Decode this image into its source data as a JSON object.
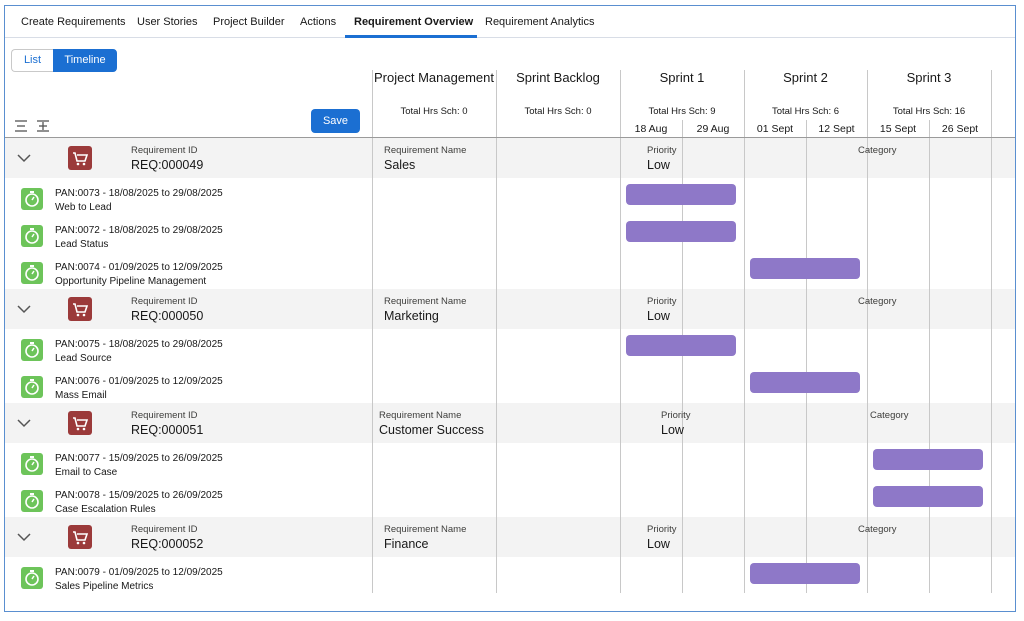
{
  "tabs": [
    {
      "label": "Create Requirements"
    },
    {
      "label": "User Stories"
    },
    {
      "label": "Project Builder"
    },
    {
      "label": "Actions"
    },
    {
      "label": "Requirement Overview",
      "active": true
    },
    {
      "label": "Requirement Analytics"
    }
  ],
  "view_toggle": {
    "list": "List",
    "timeline": "Timeline",
    "selected": "Timeline"
  },
  "save_label": "Save",
  "columns": [
    {
      "title": "Project Management",
      "hrs": "Total Hrs Sch: 0"
    },
    {
      "title": "Sprint Backlog",
      "hrs": "Total Hrs Sch: 0"
    },
    {
      "title": "Sprint 1",
      "hrs": "Total Hrs Sch: 9",
      "dates": [
        "18 Aug",
        "29 Aug"
      ]
    },
    {
      "title": "Sprint 2",
      "hrs": "Total Hrs Sch: 6",
      "dates": [
        "01 Sept",
        "12 Sept"
      ]
    },
    {
      "title": "Sprint 3",
      "hrs": "Total Hrs Sch: 16",
      "dates": [
        "15 Sept",
        "26 Sept"
      ]
    }
  ],
  "field_labels": {
    "req_id": "Requirement ID",
    "req_name": "Requirement Name",
    "priority": "Priority",
    "category": "Category"
  },
  "requirements": [
    {
      "id": "REQ:000049",
      "name": "Sales",
      "priority": "Low",
      "category": "",
      "tasks": [
        {
          "line1": "PAN:0073 - 18/08/2025 to 29/08/2025",
          "line2": "Web to Lead",
          "sprint": "Sprint 1"
        },
        {
          "line1": "PAN:0072 - 18/08/2025 to 29/08/2025",
          "line2": "Lead Status",
          "sprint": "Sprint 1"
        },
        {
          "line1": "PAN:0074 - 01/09/2025 to 12/09/2025",
          "line2": "Opportunity Pipeline Management",
          "sprint": "Sprint 2"
        }
      ]
    },
    {
      "id": "REQ:000050",
      "name": "Marketing",
      "priority": "Low",
      "category": "",
      "tasks": [
        {
          "line1": "PAN:0075 - 18/08/2025 to 29/08/2025",
          "line2": "Lead Source",
          "sprint": "Sprint 1"
        },
        {
          "line1": "PAN:0076 - 01/09/2025 to 12/09/2025",
          "line2": "Mass Email",
          "sprint": "Sprint 2"
        }
      ]
    },
    {
      "id": "REQ:000051",
      "name": "Customer Success",
      "priority": "Low",
      "category": "",
      "tasks": [
        {
          "line1": "PAN:0077 - 15/09/2025 to 26/09/2025",
          "line2": "Email to Case",
          "sprint": "Sprint 3"
        },
        {
          "line1": "PAN:0078 - 15/09/2025 to 26/09/2025",
          "line2": "Case Escalation Rules",
          "sprint": "Sprint 3"
        }
      ]
    },
    {
      "id": "REQ:000052",
      "name": "Finance",
      "priority": "Low",
      "category": "",
      "tasks": [
        {
          "line1": "PAN:0079 - 01/09/2025 to 12/09/2025",
          "line2": "Sales Pipeline Metrics",
          "sprint": "Sprint 2"
        }
      ]
    }
  ],
  "colors": {
    "accent": "#1b6fd2",
    "bar": "#8e78c8",
    "task_icon": "#6dc45a",
    "req_icon": "#9b3a3a"
  }
}
